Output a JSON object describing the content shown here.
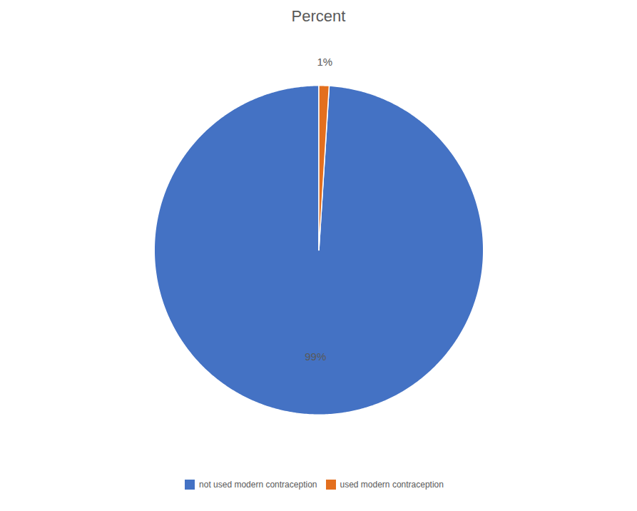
{
  "chart_data": {
    "type": "pie",
    "title": "Percent",
    "categories": [
      "not used modern contraception",
      "used modern contraception"
    ],
    "values": [
      99,
      1
    ],
    "value_labels": [
      "99%",
      "1%"
    ],
    "colors": [
      "#4472C4",
      "#E36F1E"
    ],
    "data_labels": true,
    "legend": "bottom"
  }
}
